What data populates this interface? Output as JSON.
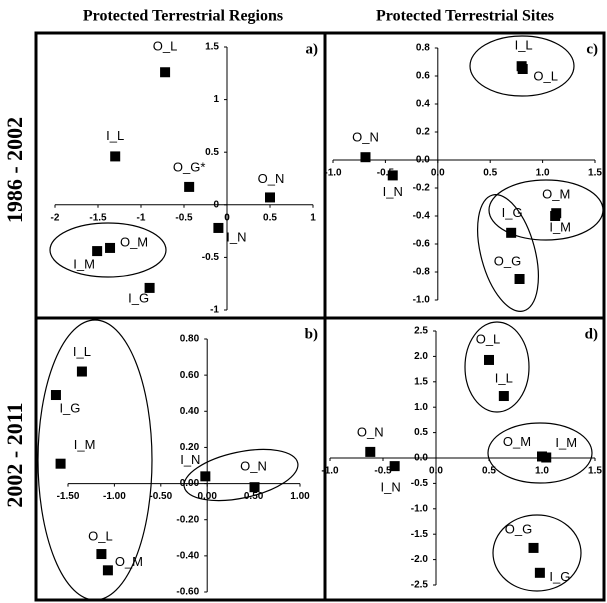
{
  "column_headers": [
    "Protected Terrestrial Regions",
    "Protected Terrestrial Sites"
  ],
  "row_headers": [
    "1986 - 2002",
    "2002 - 2011"
  ],
  "chart_data": [
    {
      "type": "scatter",
      "panel_label": "a)",
      "point_labels": [
        "O_L",
        "I_L",
        "O_G*",
        "O_N",
        "I_N",
        "O_M",
        "I_M",
        "I_G"
      ],
      "x": [
        -0.72,
        -1.3,
        -0.44,
        0.5,
        -0.1,
        -1.36,
        -1.51,
        -0.9
      ],
      "values": [
        1.26,
        0.46,
        0.17,
        0.07,
        -0.22,
        -0.41,
        -0.44,
        -0.79
      ],
      "xlim": [
        -2,
        1
      ],
      "ylim": [
        -1,
        1.5
      ],
      "xticks": [
        -2,
        -1.5,
        -1,
        -0.5,
        0,
        0.5,
        1
      ],
      "yticks": [
        -1,
        -0.5,
        0,
        0.5,
        1,
        1.5
      ]
    },
    {
      "type": "scatter",
      "panel_label": "b)",
      "point_labels": [
        "I_L",
        "I_G",
        "I_M",
        "I_N",
        "O_N",
        "O_L",
        "O_M"
      ],
      "x": [
        -1.35,
        -1.63,
        -1.58,
        -0.02,
        0.51,
        -1.14,
        -1.07
      ],
      "values": [
        0.62,
        0.49,
        0.11,
        0.04,
        -0.02,
        -0.39,
        -0.48
      ],
      "xlim": [
        -1.5,
        1
      ],
      "ylim": [
        -0.6,
        0.8
      ],
      "xticks": [
        {
          "value": -1.5,
          "label": "-1.50"
        },
        {
          "value": -1,
          "label": "-1.00"
        },
        {
          "value": -0.5,
          "label": "-0.50"
        },
        {
          "value": 0,
          "label": "0.00"
        },
        {
          "value": 0.5,
          "label": "0.50"
        },
        {
          "value": 1,
          "label": "1.00"
        }
      ],
      "yticks": [
        {
          "value": -0.6,
          "label": "-0.60"
        },
        {
          "value": -0.4,
          "label": "-0.40"
        },
        {
          "value": -0.2,
          "label": "-0.20"
        },
        {
          "value": 0,
          "label": "0.00"
        },
        {
          "value": 0.2,
          "label": "0.20"
        },
        {
          "value": 0.4,
          "label": "0.40"
        },
        {
          "value": 0.6,
          "label": "0.60"
        },
        {
          "value": 0.8,
          "label": "0.80"
        }
      ]
    },
    {
      "type": "scatter",
      "panel_label": "c)",
      "point_labels": [
        "I_L",
        "O_L",
        "O_N",
        "I_N",
        "O_M",
        "I_M",
        "I_G",
        "O_G"
      ],
      "x": [
        0.8,
        0.81,
        -0.69,
        -0.43,
        1.13,
        1.12,
        0.7,
        0.78
      ],
      "values": [
        0.67,
        0.65,
        0.02,
        -0.11,
        -0.38,
        -0.4,
        -0.52,
        -0.85
      ],
      "xlim": [
        -1,
        1.5
      ],
      "ylim": [
        -1,
        0.8
      ],
      "xticks": [
        {
          "value": -1,
          "label": "-1.0"
        },
        -0.5,
        {
          "value": 0,
          "label": "0.0"
        },
        0.5,
        {
          "value": 1,
          "label": "1.0"
        },
        1.5
      ],
      "yticks": [
        {
          "value": -1,
          "label": "-1.0"
        },
        -0.8,
        -0.6,
        -0.4,
        -0.2,
        {
          "value": 0,
          "label": "0.0"
        },
        0.2,
        0.4,
        0.6,
        0.8
      ]
    },
    {
      "type": "scatter",
      "panel_label": "d)",
      "point_labels": [
        "O_L",
        "I_L",
        "O_N",
        "I_N",
        "O_M",
        "I_M",
        "O_G",
        "I_G"
      ],
      "x": [
        0.5,
        0.64,
        -0.62,
        -0.39,
        1.0,
        1.04,
        0.92,
        0.98
      ],
      "values": [
        1.93,
        1.22,
        0.12,
        -0.16,
        0.03,
        0.01,
        -1.77,
        -2.26
      ],
      "xlim": [
        -1,
        1.5
      ],
      "ylim": [
        -2.5,
        2.5
      ],
      "xticks": [
        {
          "value": -1,
          "label": "-1.0"
        },
        -0.5,
        {
          "value": 0,
          "label": "0.0"
        },
        0.5,
        {
          "value": 1,
          "label": "1.0"
        },
        1.5
      ],
      "yticks": [
        -2.5,
        {
          "value": -2,
          "label": "-2.0"
        },
        -1.5,
        {
          "value": -1,
          "label": "-1.0"
        },
        -0.5,
        {
          "value": 0,
          "label": "0.0"
        },
        0.5,
        {
          "value": 1,
          "label": "1.0"
        },
        1.5,
        {
          "value": 2,
          "label": "2.0"
        },
        2.5
      ]
    }
  ]
}
